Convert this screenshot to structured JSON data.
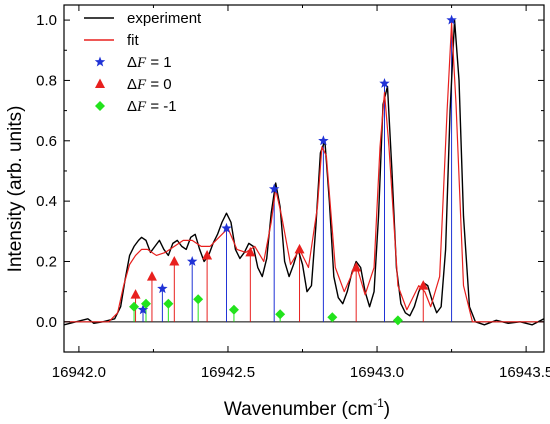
{
  "chart_data": {
    "type": "line",
    "title": "",
    "xlabel": "Wavenumber (cm",
    "xlabel_sup": "-1",
    "xlabel_close": ")",
    "ylabel": "Intensity (arb. units)",
    "xlim": [
      16941.95,
      16943.56
    ],
    "ylim": [
      -0.1,
      1.05
    ],
    "xticks": [
      16942.0,
      16942.5,
      16943.0,
      16943.5
    ],
    "xtick_labels": [
      "16942.0",
      "16942.5",
      "16943.0",
      "16943.5"
    ],
    "yticks": [
      0.0,
      0.2,
      0.4,
      0.6,
      0.8,
      1.0
    ],
    "ytick_labels": [
      "0.0",
      "0.2",
      "0.4",
      "0.6",
      "0.8",
      "1.0"
    ],
    "grid": false,
    "legend_placement": "top-left",
    "legend": [
      {
        "key": "experiment",
        "label": "experiment",
        "kind": "line",
        "color": "#000000"
      },
      {
        "key": "fit",
        "label": "fit",
        "kind": "line",
        "color": "#e8201e"
      },
      {
        "key": "dF1",
        "label_prefix": "Δ",
        "label_ital": "F",
        "label_suffix": " = 1",
        "kind": "star",
        "color": "#1f32d6"
      },
      {
        "key": "dF0",
        "label_prefix": "Δ",
        "label_ital": "F",
        "label_suffix": " = 0",
        "kind": "triangle",
        "color": "#e8201e"
      },
      {
        "key": "dFm1",
        "label_prefix": "Δ",
        "label_ital": "F",
        "label_suffix": " = -1",
        "kind": "diamond",
        "color": "#22e31c"
      }
    ],
    "series": [
      {
        "name": "experiment",
        "color": "#000000",
        "x": [
          16941.95,
          16941.99,
          16942.03,
          16942.05,
          16942.08,
          16942.1,
          16942.12,
          16942.14,
          16942.155,
          16942.17,
          16942.185,
          16942.2,
          16942.21,
          16942.225,
          16942.24,
          16942.255,
          16942.27,
          16942.285,
          16942.3,
          16942.315,
          16942.33,
          16942.345,
          16942.36,
          16942.375,
          16942.39,
          16942.405,
          16942.42,
          16942.435,
          16942.45,
          16942.465,
          16942.48,
          16942.495,
          16942.51,
          16942.525,
          16942.54,
          16942.555,
          16942.57,
          16942.585,
          16942.6,
          16942.615,
          16942.63,
          16942.645,
          16942.66,
          16942.675,
          16942.69,
          16942.705,
          16942.72,
          16942.735,
          16942.75,
          16942.765,
          16942.78,
          16942.795,
          16942.81,
          16942.825,
          16942.84,
          16942.855,
          16942.87,
          16942.885,
          16942.9,
          16942.915,
          16942.93,
          16942.945,
          16942.96,
          16942.975,
          16942.99,
          16943.005,
          16943.02,
          16943.035,
          16943.05,
          16943.065,
          16943.08,
          16943.095,
          16943.11,
          16943.125,
          16943.14,
          16943.155,
          16943.17,
          16943.185,
          16943.2,
          16943.215,
          16943.23,
          16943.245,
          16943.26,
          16943.275,
          16943.29,
          16943.31,
          16943.33,
          16943.36,
          16943.4,
          16943.44,
          16943.48,
          16943.52,
          16943.56
        ],
        "y": [
          -0.01,
          0.0,
          0.01,
          -0.005,
          0.0,
          0.005,
          0.01,
          0.05,
          0.14,
          0.22,
          0.25,
          0.27,
          0.28,
          0.27,
          0.23,
          0.25,
          0.27,
          0.24,
          0.22,
          0.26,
          0.27,
          0.25,
          0.24,
          0.28,
          0.29,
          0.24,
          0.2,
          0.22,
          0.26,
          0.29,
          0.33,
          0.36,
          0.33,
          0.24,
          0.21,
          0.23,
          0.26,
          0.25,
          0.18,
          0.15,
          0.21,
          0.36,
          0.46,
          0.38,
          0.2,
          0.15,
          0.19,
          0.24,
          0.19,
          0.1,
          0.12,
          0.32,
          0.56,
          0.6,
          0.4,
          0.15,
          0.08,
          0.06,
          0.1,
          0.16,
          0.2,
          0.18,
          0.1,
          0.05,
          0.1,
          0.35,
          0.72,
          0.78,
          0.5,
          0.18,
          0.06,
          0.03,
          0.02,
          0.05,
          0.1,
          0.13,
          0.12,
          0.07,
          0.03,
          0.05,
          0.24,
          0.7,
          1.0,
          0.8,
          0.35,
          0.05,
          0.0,
          -0.01,
          0.005,
          -0.005,
          0.0,
          -0.01,
          0.01
        ]
      },
      {
        "name": "fit",
        "color": "#e8201e",
        "x": [
          16941.95,
          16942.1,
          16942.13,
          16942.15,
          16942.17,
          16942.19,
          16942.21,
          16942.23,
          16942.26,
          16942.29,
          16942.32,
          16942.35,
          16942.38,
          16942.41,
          16942.44,
          16942.47,
          16942.5,
          16942.53,
          16942.56,
          16942.59,
          16942.62,
          16942.645,
          16942.66,
          16942.68,
          16942.71,
          16942.74,
          16942.77,
          16942.8,
          16942.815,
          16942.83,
          16942.86,
          16942.89,
          16942.93,
          16942.96,
          16942.99,
          16943.01,
          16943.025,
          16943.04,
          16943.07,
          16943.1,
          16943.14,
          16943.16,
          16943.18,
          16943.21,
          16943.235,
          16943.25,
          16943.265,
          16943.29,
          16943.32,
          16943.56
        ],
        "y": [
          0.0,
          0.0,
          0.03,
          0.12,
          0.19,
          0.22,
          0.24,
          0.24,
          0.22,
          0.23,
          0.25,
          0.27,
          0.27,
          0.25,
          0.25,
          0.28,
          0.31,
          0.24,
          0.23,
          0.25,
          0.2,
          0.33,
          0.44,
          0.35,
          0.19,
          0.24,
          0.18,
          0.38,
          0.58,
          0.55,
          0.18,
          0.1,
          0.19,
          0.09,
          0.18,
          0.58,
          0.76,
          0.58,
          0.12,
          0.04,
          0.12,
          0.1,
          0.05,
          0.15,
          0.7,
          0.99,
          0.72,
          0.12,
          0.0,
          0.0
        ]
      }
    ],
    "sticks": [
      {
        "series": "dF1",
        "color": "#1f32d6",
        "marker": "star",
        "x": [
          16942.215,
          16942.28,
          16942.38,
          16942.495,
          16942.655,
          16942.82,
          16943.025,
          16943.25
        ],
        "y": [
          0.04,
          0.11,
          0.2,
          0.31,
          0.44,
          0.6,
          0.79,
          1.0
        ]
      },
      {
        "series": "dF0",
        "color": "#e8201e",
        "marker": "triangle",
        "x": [
          16942.19,
          16942.245,
          16942.32,
          16942.43,
          16942.575,
          16942.74,
          16942.93,
          16943.155
        ],
        "y": [
          0.09,
          0.15,
          0.2,
          0.22,
          0.23,
          0.24,
          0.18,
          0.12
        ]
      },
      {
        "series": "dFm1",
        "color": "#22e31c",
        "marker": "diamond",
        "x": [
          16942.185,
          16942.225,
          16942.3,
          16942.4,
          16942.52,
          16942.675,
          16942.85,
          16943.07
        ],
        "y": [
          0.05,
          0.06,
          0.06,
          0.075,
          0.04,
          0.025,
          0.015,
          0.005
        ]
      }
    ],
    "baseline_y": 0.0
  }
}
